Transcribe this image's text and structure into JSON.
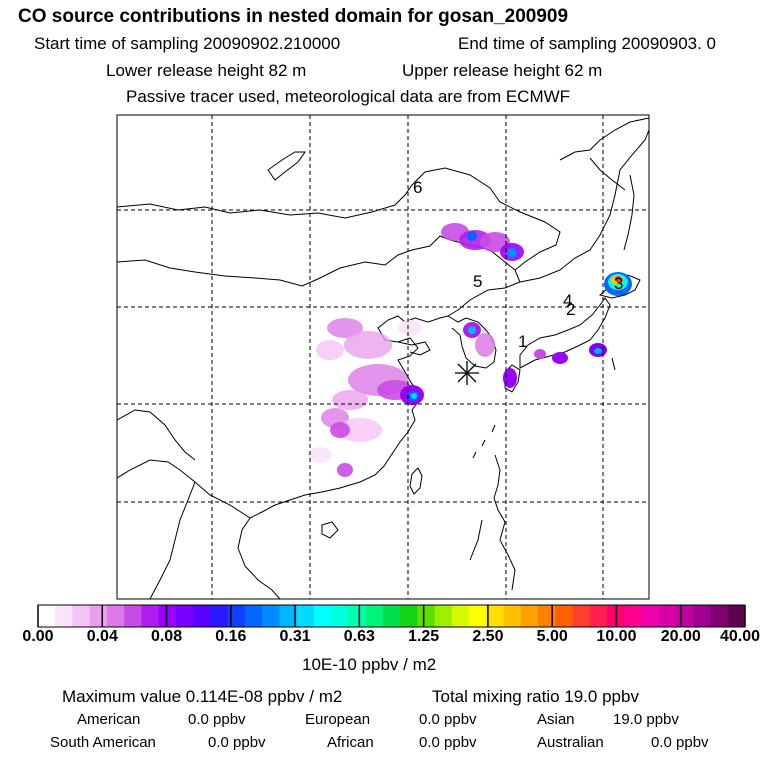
{
  "header": {
    "title": "CO  source contributions in nested domain for gosan_200909",
    "start_label": "Start time of sampling 20090902.210000",
    "end_label": "End time of sampling 20090903.     0",
    "lower_label": "Lower release height   82 m",
    "upper_label": "Upper release height   62 m",
    "tracer_label": "Passive tracer used, meteorological data are from ECMWF"
  },
  "map": {
    "markers": [
      "6",
      "5",
      "4",
      "2",
      "1",
      "3"
    ]
  },
  "colorbar": {
    "tick_labels": [
      "0.00",
      "0.04",
      "0.08",
      "0.16",
      "0.31",
      "0.63",
      "1.25",
      "2.50",
      "5.00",
      "10.00",
      "20.00",
      "40.00"
    ],
    "unit": "10E-10 ppbv / m2",
    "colors": [
      "#ffffff",
      "#fbe3fb",
      "#f5c3f5",
      "#eaa0ee",
      "#dc7ae6",
      "#c94be6",
      "#b11df0",
      "#9a00ff",
      "#7c00ff",
      "#5a00ff",
      "#2a1aff",
      "#1040ff",
      "#0066ff",
      "#008cff",
      "#00b6ff",
      "#00dcff",
      "#00ffff",
      "#00ffdc",
      "#00ffaa",
      "#00f57a",
      "#00e04c",
      "#14d214",
      "#5ae000",
      "#9cf000",
      "#d8fa00",
      "#ffff00",
      "#ffe000",
      "#ffc000",
      "#ffa000",
      "#ff8000",
      "#ff6000",
      "#ff4030",
      "#ff2050",
      "#ff0070",
      "#ff0090",
      "#f000a8",
      "#d800a8",
      "#c000a0",
      "#a00090",
      "#800070",
      "#600050"
    ]
  },
  "stats": {
    "max_label": "Maximum value  0.114E-08 ppbv / m2",
    "total_label": "Total mixing ratio       19.0 ppbv",
    "regions": [
      {
        "name": "American",
        "value": "0.0 ppbv"
      },
      {
        "name": "European",
        "value": "0.0 ppbv"
      },
      {
        "name": "Asian",
        "value": "19.0 ppbv"
      },
      {
        "name": "South American",
        "value": "0.0 ppbv"
      },
      {
        "name": "African",
        "value": "0.0 ppbv"
      },
      {
        "name": "Australian",
        "value": "0.0 ppbv"
      }
    ]
  }
}
